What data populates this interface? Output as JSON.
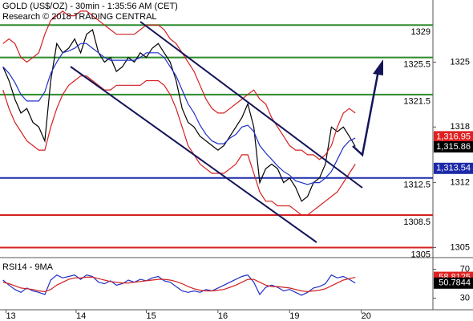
{
  "chart_data": [
    {
      "type": "line",
      "title": "GOLD (US$/OZ) - 30min - 1:35:56 AM (CET)",
      "subtitle": "Research © 2018 TRADING CENTRAL",
      "xlim": [
        -0.5,
        72
      ],
      "ylim": [
        1304,
        1331.7
      ],
      "yticks": [
        1325,
        1318,
        1312,
        1305
      ],
      "series": [
        {
          "color": "#000000",
          "values": [
            1324.5,
            1323,
            1321,
            1319.5,
            1320,
            1318.5,
            1318,
            1316.5,
            1323,
            1327,
            1326,
            1326.5,
            1327.5,
            1326,
            1328,
            1328.5,
            1326,
            1325,
            1325.5,
            1324,
            1324.5,
            1325.5,
            1325,
            1326,
            1325.5,
            1326.5,
            1327,
            1326,
            1325,
            1323,
            1320,
            1318.5,
            1318,
            1317,
            1316.5,
            1316,
            1315.5,
            1316,
            1317,
            1318,
            1319,
            1320.5,
            1318,
            1312,
            1313.5,
            1314,
            1313.5,
            1312,
            1312.5,
            1311.5,
            1310,
            1310.5,
            1312,
            1312.5,
            1314,
            1318,
            1317.5,
            1318,
            1317,
            1315.9
          ]
        },
        {
          "color": "#d42020",
          "values": [
            1327,
            1327.5,
            1327,
            1325.5,
            1325,
            1325.5,
            1326,
            1328,
            1329.5,
            1330,
            1330.5,
            1330,
            1330,
            1330.5,
            1330.5,
            1330,
            1329.5,
            1329,
            1328.5,
            1328,
            1328,
            1328,
            1328,
            1328.5,
            1329,
            1329,
            1329,
            1328.5,
            1327.5,
            1327,
            1326,
            1325,
            1324,
            1322.5,
            1321,
            1320,
            1319.5,
            1319.5,
            1320,
            1320.5,
            1321,
            1321.5,
            1322,
            1321,
            1320.5,
            1319,
            1318,
            1317,
            1316,
            1315.5,
            1315.5,
            1315,
            1315,
            1314.5,
            1315,
            1316,
            1318,
            1319.5,
            1320,
            1319.5
          ]
        },
        {
          "color": "#2030c8",
          "values": [
            1324.5,
            1323.8,
            1322.8,
            1321.5,
            1320.8,
            1320.8,
            1320.8,
            1321.8,
            1323.8,
            1325,
            1326,
            1326.2,
            1326.5,
            1327,
            1327,
            1326.5,
            1326,
            1325.5,
            1325.2,
            1325.2,
            1325.2,
            1325.2,
            1325.2,
            1325.5,
            1326,
            1326,
            1326,
            1325.5,
            1324.5,
            1323.5,
            1322,
            1320.5,
            1319.5,
            1318.2,
            1317.2,
            1316.5,
            1316.2,
            1316.2,
            1316.8,
            1317.2,
            1318,
            1318.2,
            1317.5,
            1316,
            1315.2,
            1314.5,
            1313.8,
            1313.2,
            1312.8,
            1312.2,
            1312,
            1311.8,
            1312,
            1312,
            1312.5,
            1313.2,
            1314.5,
            1315.8,
            1316.5,
            1316.8
          ]
        },
        {
          "color": "#d42020",
          "values": [
            1322,
            1320,
            1318.5,
            1317.5,
            1316.5,
            1316,
            1315.5,
            1315.5,
            1318,
            1320,
            1321.5,
            1322.5,
            1323,
            1323.5,
            1323.5,
            1323,
            1322.5,
            1322,
            1322,
            1322.5,
            1322.5,
            1322.5,
            1322.5,
            1322.5,
            1323,
            1323,
            1323,
            1322.5,
            1321.5,
            1320,
            1318,
            1316,
            1315,
            1314,
            1313.5,
            1313,
            1313,
            1313,
            1313.5,
            1314,
            1315,
            1315,
            1313,
            1311,
            1310,
            1310,
            1309.5,
            1309.5,
            1309.5,
            1309,
            1308.5,
            1308.5,
            1309,
            1309.5,
            1310,
            1310.5,
            1311,
            1312,
            1313,
            1314
          ]
        }
      ],
      "levels": [
        {
          "value": 1329,
          "color": "#2e8b2e"
        },
        {
          "value": 1325.5,
          "color": "#2e8b2e"
        },
        {
          "value": 1321.5,
          "color": "#2e8b2e"
        },
        {
          "value": 1312.5,
          "color": "#1c2aa8"
        },
        {
          "value": 1308.5,
          "color": "#d42020"
        },
        {
          "value": 1305,
          "color": "#d42020"
        }
      ],
      "price_tags": [
        {
          "value": 1316.95,
          "label": "1,316.95",
          "color": "#e02020"
        },
        {
          "value": 1315.86,
          "label": "1,315.86",
          "color": "#000000"
        },
        {
          "value": 1313.54,
          "label": "1,313.54",
          "color": "#1c2aa8"
        }
      ]
    },
    {
      "type": "line",
      "title": "RSI14 - 9MA",
      "xlim": [
        -0.5,
        72
      ],
      "xticks": [
        {
          "value": 0.5,
          "label": "13"
        },
        {
          "value": 12.25,
          "label": "14"
        },
        {
          "value": 24,
          "label": "15"
        },
        {
          "value": 36,
          "label": "16"
        },
        {
          "value": 48,
          "label": "19"
        },
        {
          "value": 60,
          "label": "20"
        }
      ],
      "ylim": [
        15,
        85
      ],
      "yticks": [
        30,
        70
      ],
      "series": [
        {
          "color": "#2030c8",
          "values": [
            55,
            48,
            42,
            38,
            44,
            40,
            38,
            35,
            55,
            62,
            58,
            60,
            62,
            56,
            62,
            60,
            52,
            50,
            54,
            48,
            50,
            55,
            52,
            56,
            54,
            58,
            60,
            54,
            52,
            46,
            40,
            38,
            40,
            38,
            42,
            40,
            44,
            48,
            52,
            56,
            60,
            62,
            52,
            35,
            45,
            48,
            45,
            40,
            42,
            38,
            34,
            38,
            44,
            46,
            50,
            62,
            58,
            60,
            56,
            50.8
          ]
        },
        {
          "color": "#d42020",
          "values": [
            52,
            50,
            47,
            44,
            43,
            42,
            40,
            39,
            42,
            48,
            52,
            56,
            58,
            58,
            59,
            59,
            57,
            55,
            53,
            52,
            51,
            51,
            52,
            53,
            54,
            55,
            56,
            56,
            55,
            53,
            50,
            46,
            43,
            41,
            40,
            40,
            41,
            42,
            45,
            48,
            52,
            56,
            56,
            52,
            48,
            46,
            46,
            45,
            44,
            42,
            40,
            39,
            40,
            41,
            43,
            47,
            51,
            55,
            57,
            58.8
          ]
        }
      ],
      "price_tags": [
        {
          "value": 58.8125,
          "color": "#e02020"
        },
        {
          "value": 50.7844,
          "color": "#000000"
        }
      ]
    }
  ]
}
